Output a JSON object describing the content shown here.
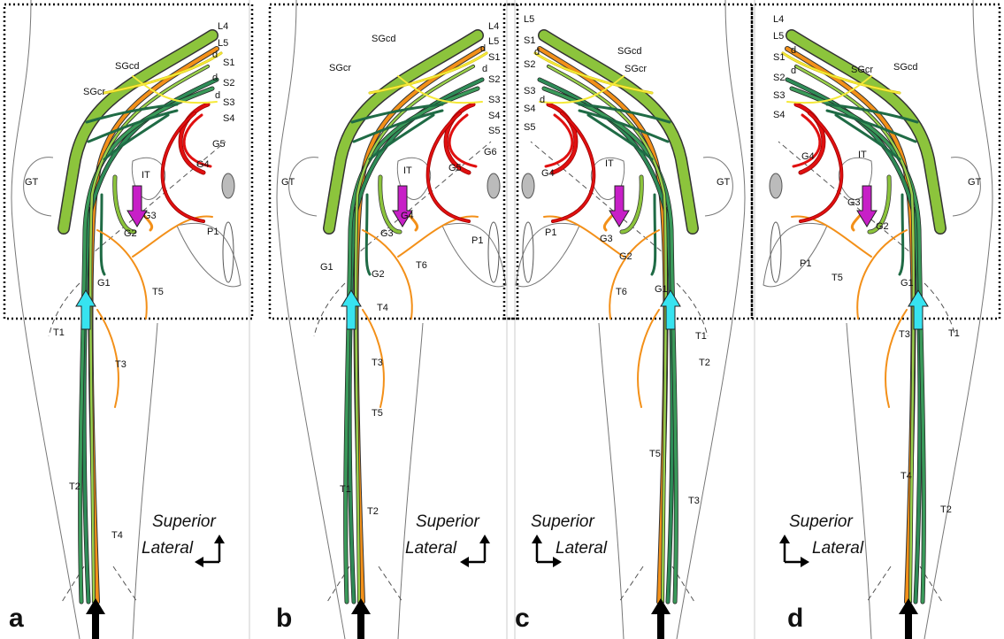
{
  "panels": [
    {
      "letter": "a",
      "directions": [
        "Superior",
        "Lateral"
      ],
      "labels": [
        "L4",
        "L5",
        "S1",
        "S2",
        "S3",
        "S4",
        "d",
        "d",
        "d",
        "SGcd",
        "SGcr",
        "GT",
        "IT",
        "G5",
        "G4",
        "G3",
        "G2",
        "P1",
        "G1",
        "T5",
        "T1",
        "T3",
        "T2",
        "T4"
      ]
    },
    {
      "letter": "b",
      "directions": [
        "Superior",
        "Lateral"
      ],
      "labels": [
        "L4",
        "L5",
        "S1",
        "S2",
        "S3",
        "S4",
        "S5",
        "d",
        "d",
        "SGcd",
        "SGcr",
        "GT",
        "IT",
        "G5",
        "G6",
        "G4",
        "G3",
        "P1",
        "G1",
        "G2",
        "T6",
        "T4",
        "T3",
        "T5",
        "T1",
        "T2"
      ]
    },
    {
      "letter": "c",
      "directions": [
        "Superior",
        "Lateral"
      ],
      "labels": [
        "L5",
        "S1",
        "d",
        "S2",
        "S3",
        "d",
        "S4",
        "S5",
        "SGcd",
        "SGcr",
        "GT",
        "IT",
        "G4",
        "P1",
        "G3",
        "G2",
        "G1",
        "T6",
        "T1",
        "T2",
        "T5",
        "T3"
      ]
    },
    {
      "letter": "d",
      "directions": [
        "Superior",
        "Lateral"
      ],
      "labels": [
        "L4",
        "L5",
        "S1",
        "d",
        "S2",
        "d",
        "S3",
        "S4",
        "SGcr",
        "SGcd",
        "GT",
        "IT",
        "G4",
        "G3",
        "G2",
        "P1",
        "T5",
        "G1",
        "T3",
        "T1",
        "T4",
        "T2"
      ]
    }
  ]
}
